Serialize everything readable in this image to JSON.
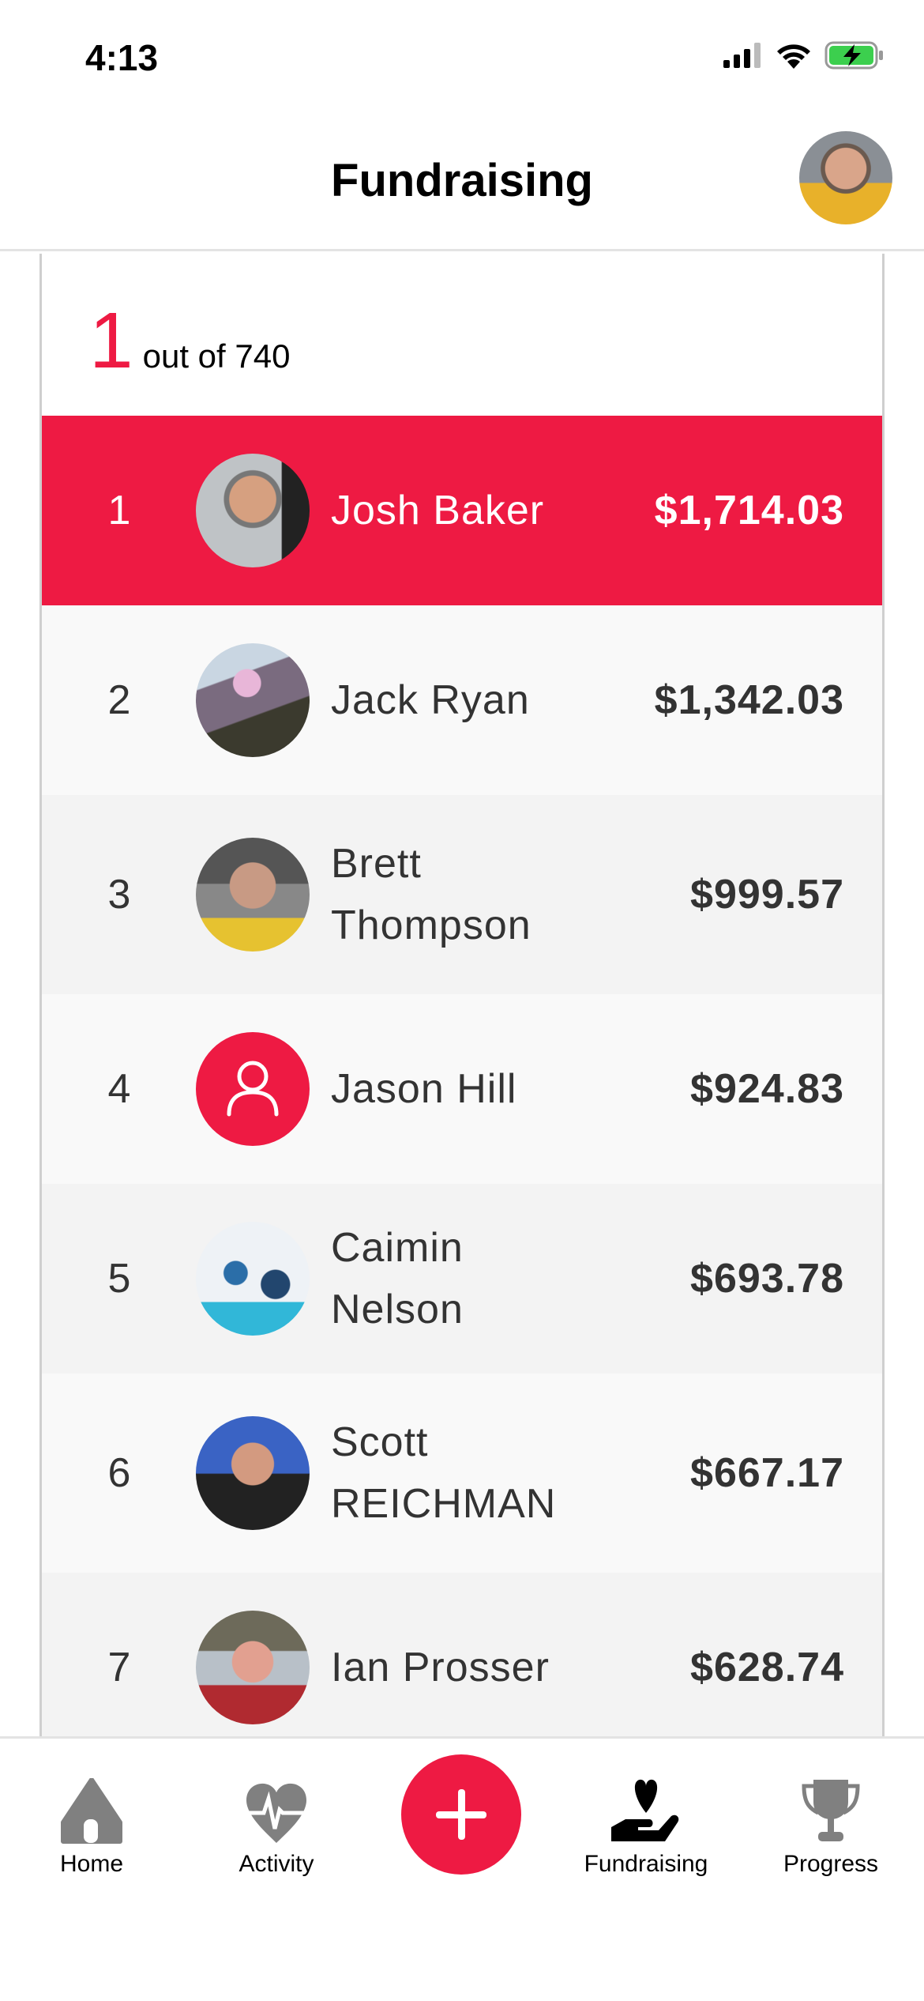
{
  "status_bar": {
    "time": "4:13"
  },
  "header": {
    "title": "Fundraising"
  },
  "summary": {
    "rank": "1",
    "total_text": "out of 740"
  },
  "leaderboard": [
    {
      "rank": "1",
      "name": "Josh Baker",
      "amount": "$1,714.03",
      "highlighted": true,
      "avatar": "photo"
    },
    {
      "rank": "2",
      "name": "Jack Ryan",
      "amount": "$1,342.03",
      "avatar": "photo"
    },
    {
      "rank": "3",
      "name": "Brett Thompson",
      "amount": "$999.57",
      "avatar": "photo"
    },
    {
      "rank": "4",
      "name": "Jason Hill",
      "amount": "$924.83",
      "avatar": "user-placeholder-icon"
    },
    {
      "rank": "5",
      "name": "Caimin Nelson",
      "amount": "$693.78",
      "avatar": "photo"
    },
    {
      "rank": "6",
      "name": "Scott REICHMAN",
      "amount": "$667.17",
      "avatar": "photo"
    },
    {
      "rank": "7",
      "name": "Ian Prosser",
      "amount": "$628.74",
      "avatar": "photo"
    }
  ],
  "tabs": [
    {
      "label": "Home",
      "icon": "home-icon",
      "active": false
    },
    {
      "label": "Activity",
      "icon": "heartbeat-icon",
      "active": false
    },
    {
      "label": "Fundraising",
      "icon": "hand-heart-icon",
      "active": true
    },
    {
      "label": "Progress",
      "icon": "trophy-icon",
      "active": false
    }
  ],
  "colors": {
    "accent": "#ee1a43",
    "inactive_icon": "#808080"
  }
}
